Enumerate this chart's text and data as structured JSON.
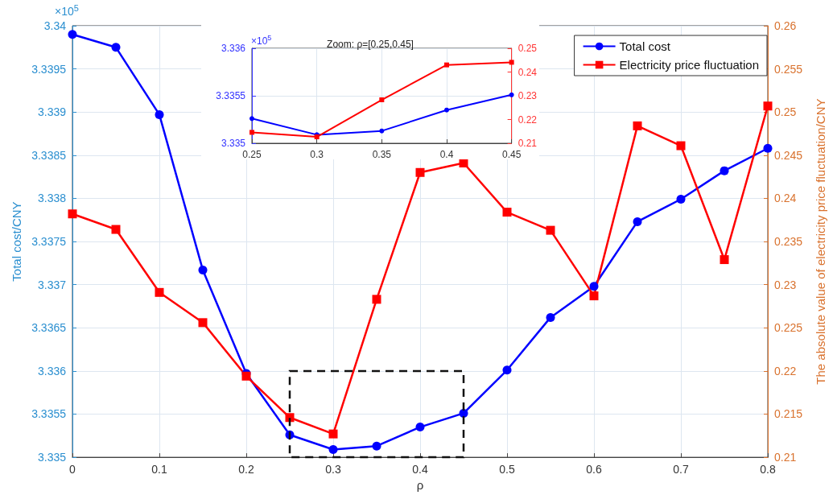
{
  "chart_data": [
    {
      "type": "line",
      "xlabel": "ρ",
      "ylabel": "Total cost/CNY",
      "y2label": "The absolute value of electricity price fluctuation/CNY",
      "x": [
        0,
        0.05,
        0.1,
        0.15,
        0.2,
        0.25,
        0.3,
        0.35,
        0.4,
        0.45,
        0.5,
        0.55,
        0.6,
        0.65,
        0.7,
        0.75,
        0.8
      ],
      "series": [
        {
          "name": "Total cost",
          "color": "#0000ff",
          "marker": "circle",
          "values": [
            3.3399,
            3.33975,
            3.33897,
            3.33717,
            3.33597,
            3.33526,
            3.33509,
            3.33513,
            3.33535,
            3.33551,
            3.33601,
            3.33662,
            3.33698,
            3.33773,
            3.33799,
            3.33832,
            3.33858
          ]
        },
        {
          "name": "Electricity price fluctuation",
          "color": "#ff0000",
          "marker": "square",
          "axis": "y2",
          "values": [
            0.2382,
            0.2364,
            0.2291,
            0.2256,
            0.2194,
            0.2146,
            0.2127,
            0.2283,
            0.243,
            0.2441,
            0.2384,
            0.2363,
            0.2287,
            0.2484,
            0.2461,
            0.2329,
            0.2507
          ]
        }
      ],
      "xlim": [
        0,
        0.8
      ],
      "xticks": [
        0,
        0.1,
        0.2,
        0.3,
        0.4,
        0.5,
        0.6,
        0.7,
        0.8
      ],
      "ylim": [
        3.335,
        3.34
      ],
      "yticks": [
        3.335,
        3.3355,
        3.336,
        3.3365,
        3.337,
        3.3375,
        3.338,
        3.3385,
        3.339,
        3.3395,
        3.34
      ],
      "y2lim": [
        0.21,
        0.26
      ],
      "y2ticks": [
        0.21,
        0.215,
        0.22,
        0.225,
        0.23,
        0.235,
        0.24,
        0.245,
        0.25,
        0.255,
        0.26
      ],
      "annotations": [
        "×10$^{5}$"
      ],
      "grid": true,
      "legend": "top right"
    },
    {
      "type": "line",
      "title": "Zoom: ρ=[0.25,0.45]",
      "x": [
        0.25,
        0.3,
        0.35,
        0.4,
        0.45
      ],
      "series": [
        {
          "color": "#0000ff",
          "marker": "circle",
          "values": [
            3.33526,
            3.33509,
            3.33513,
            3.33535,
            3.33551
          ]
        },
        {
          "color": "#ff0000",
          "marker": "square",
          "axis": "y2",
          "values": [
            0.2146,
            0.2127,
            0.2283,
            0.243,
            0.2441
          ]
        }
      ],
      "xlim": [
        0.25,
        0.45
      ],
      "xticks": [
        0.25,
        0.3,
        0.35,
        0.4,
        0.45
      ],
      "ylim": [
        3.335,
        3.336
      ],
      "yticks": [
        3.335,
        3.3355,
        3.336
      ],
      "y2lim": [
        0.21,
        0.25
      ],
      "y2ticks": [
        0.21,
        0.22,
        0.23,
        0.24,
        0.25
      ],
      "annotations": [
        "×10$^{5}$"
      ],
      "grid": true
    }
  ]
}
